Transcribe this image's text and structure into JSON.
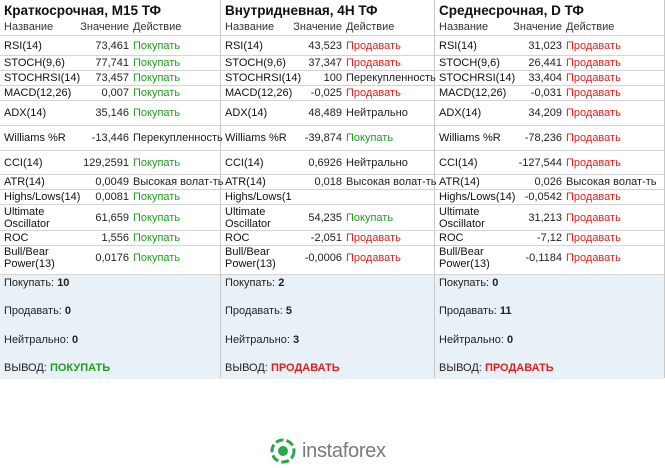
{
  "panels": [
    {
      "title": "Краткосрочная, M15 ТФ",
      "headers": [
        "Название",
        "Значение",
        "Действие"
      ],
      "rows": [
        {
          "name": "RSI(14)",
          "value": "73,461",
          "action": "Покупать",
          "color": "#1e9e1e"
        },
        {
          "name": "STOCH(9,6)",
          "value": "77,741",
          "action": "Покупать",
          "color": "#1e9e1e"
        },
        {
          "name": "STOCHRSI(14)",
          "value": "73,457",
          "action": "Покупать",
          "color": "#1e9e1e"
        },
        {
          "name": "MACD(12,26)",
          "value": "0,007",
          "action": "Покупать",
          "color": "#1e9e1e"
        },
        {
          "name": "ADX(14)",
          "value": "35,146",
          "action": "Покупать",
          "color": "#1e9e1e"
        },
        {
          "name": "Williams %R",
          "value": "-13,446",
          "action": "Перекупленность",
          "color": "#222222"
        },
        {
          "name": "CCI(14)",
          "value": "129,2591",
          "action": "Покупать",
          "color": "#1e9e1e"
        },
        {
          "name": "ATR(14)",
          "value": "0,0049",
          "action": "Высокая волат-ть",
          "color": "#222222"
        },
        {
          "name": "Highs/Lows(14)",
          "value": "0,0081",
          "action": "Покупать",
          "color": "#1e9e1e"
        },
        {
          "name": "Ultimate Oscillator",
          "value": "61,659",
          "action": "Покупать",
          "color": "#1e9e1e"
        },
        {
          "name": "ROC",
          "value": "1,556",
          "action": "Покупать",
          "color": "#1e9e1e"
        },
        {
          "name": "Bull/Bear Power(13)",
          "value": "0,0176",
          "action": "Покупать",
          "color": "#1e9e1e"
        }
      ],
      "summary": [
        {
          "label": "Покупать:",
          "value": "10"
        },
        {
          "label": "Продавать:",
          "value": "0"
        },
        {
          "label": "Нейтрально:",
          "value": "0"
        }
      ],
      "verdict": {
        "label": "ВЫВОД:",
        "value": "ПОКУПАТЬ",
        "color": "#1e9e1e"
      }
    },
    {
      "title": "Внутридневная, 4H ТФ",
      "headers": [
        "Название",
        "Значение",
        "Действие"
      ],
      "rows": [
        {
          "name": "RSI(14)",
          "value": "43,523",
          "action": "Продавать",
          "color": "#e02020"
        },
        {
          "name": "STOCH(9,6)",
          "value": "37,347",
          "action": "Продавать",
          "color": "#e02020"
        },
        {
          "name": "STOCHRSI(14)",
          "value": "100",
          "action": "Перекупленность",
          "color": "#222222"
        },
        {
          "name": "MACD(12,26)",
          "value": "-0,025",
          "action": "Продавать",
          "color": "#e02020"
        },
        {
          "name": "ADX(14)",
          "value": "48,489",
          "action": "Нейтрально",
          "color": "#222222"
        },
        {
          "name": "Williams %R",
          "value": "-39,874",
          "action": "Покупать",
          "color": "#1e9e1e"
        },
        {
          "name": "CCI(14)",
          "value": "0,6926",
          "action": "Нейтрально",
          "color": "#222222"
        },
        {
          "name": "ATR(14)",
          "value": "0,018",
          "action": "Высокая волат-ть",
          "color": "#222222"
        },
        {
          "name": "Highs/Lows(1"
        },
        {
          "name": "Ultimate Oscillator",
          "value": "54,235",
          "action": "Покупать",
          "color": "#1e9e1e"
        },
        {
          "name": "ROC",
          "value": "-2,051",
          "action": "Продавать",
          "color": "#e02020"
        },
        {
          "name": "Bull/Bear Power(13)",
          "value": "-0,0006",
          "action": "Продавать",
          "color": "#e02020"
        }
      ],
      "summary": [
        {
          "label": "Покупать:",
          "value": "2"
        },
        {
          "label": "Продавать:",
          "value": "5"
        },
        {
          "label": "Нейтрально:",
          "value": "3"
        }
      ],
      "verdict": {
        "label": "ВЫВОД:",
        "value": "ПРОДАВАТЬ",
        "color": "#e02020"
      }
    },
    {
      "title": "Среднесрочная, D ТФ",
      "headers": [
        "Название",
        "Значение",
        "Действие"
      ],
      "rows": [
        {
          "name": "RSI(14)",
          "value": "31,023",
          "action": "Продавать",
          "color": "#e02020"
        },
        {
          "name": "STOCH(9,6)",
          "value": "26,441",
          "action": "Продавать",
          "color": "#e02020"
        },
        {
          "name": "STOCHRSI(14)",
          "value": "33,404",
          "action": "Продавать",
          "color": "#e02020"
        },
        {
          "name": "MACD(12,26)",
          "value": "-0,031",
          "action": "Продавать",
          "color": "#e02020"
        },
        {
          "name": "ADX(14)",
          "value": "34,209",
          "action": "Продавать",
          "color": "#e02020"
        },
        {
          "name": "Williams %R",
          "value": "-78,236",
          "action": "Продавать",
          "color": "#e02020"
        },
        {
          "name": "CCI(14)",
          "value": "-127,544",
          "action": "Продавать",
          "color": "#e02020"
        },
        {
          "name": "ATR(14)",
          "value": "0,026",
          "action": "Высокая волат-ть",
          "color": "#222222"
        },
        {
          "name": "Highs/Lows(14)",
          "value": "-0,0542",
          "action": "Продавать",
          "color": "#e02020"
        },
        {
          "name": "Ultimate Oscillator",
          "value": "31,213",
          "action": "Продавать",
          "color": "#e02020"
        },
        {
          "name": "ROC",
          "value": "-7,12",
          "action": "Продавать",
          "color": "#e02020"
        },
        {
          "name": "Bull/Bear Power(13)",
          "value": "-0,1184",
          "action": "Продавать",
          "color": "#e02020"
        }
      ],
      "summary": [
        {
          "label": "Покупать:",
          "value": "0"
        },
        {
          "label": "Продавать:",
          "value": "11"
        },
        {
          "label": "Нейтрально:",
          "value": "0"
        }
      ],
      "verdict": {
        "label": "ВЫВОД:",
        "value": "ПРОДАВАТЬ",
        "color": "#e02020"
      }
    }
  ],
  "logo": "instaforex"
}
